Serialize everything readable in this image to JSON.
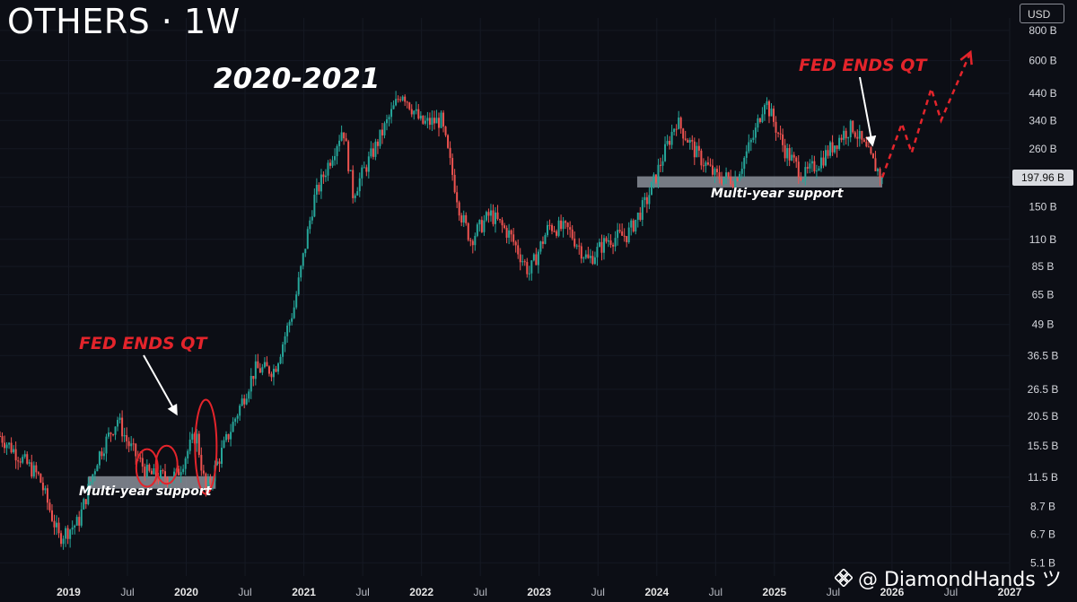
{
  "header": {
    "title": "OTHERS · 1W"
  },
  "annotations": {
    "period": "2020-2021",
    "fed_left": "FED ENDS QT",
    "fed_right": "FED ENDS QT",
    "support_left": "Multi-year support",
    "support_right": "Multi-year support"
  },
  "axis": {
    "currency": "USD",
    "last_price_label": "197.96 B"
  },
  "watermark": {
    "text": "@ DiamondHands ツ",
    "icon": "binance-logo-icon"
  },
  "colors": {
    "up": "#26a69a",
    "down": "#ef5350",
    "annotation_red": "#e3242b",
    "support_band": "#9aa0aa",
    "background": "#0c0e15"
  },
  "chart_data": {
    "type": "candlestick",
    "title": "OTHERS · 1W",
    "y_scale": "log",
    "y_unit": "USD (billions)",
    "ylim": [
      4.5,
      900
    ],
    "y_ticks": [
      {
        "label": "800 B",
        "value": 800
      },
      {
        "label": "600 B",
        "value": 600
      },
      {
        "label": "440 B",
        "value": 440
      },
      {
        "label": "340 B",
        "value": 340
      },
      {
        "label": "260 B",
        "value": 260
      },
      {
        "label": "197.96 B",
        "value": 197.96
      },
      {
        "label": "150 B",
        "value": 150
      },
      {
        "label": "110 B",
        "value": 110
      },
      {
        "label": "85 B",
        "value": 85
      },
      {
        "label": "65 B",
        "value": 65
      },
      {
        "label": "49 B",
        "value": 49
      },
      {
        "label": "36.5 B",
        "value": 36.5
      },
      {
        "label": "26.5 B",
        "value": 26.5
      },
      {
        "label": "20.5 B",
        "value": 20.5
      },
      {
        "label": "15.5 B",
        "value": 15.5
      },
      {
        "label": "11.5 B",
        "value": 11.5
      },
      {
        "label": "8.7 B",
        "value": 8.7
      },
      {
        "label": "6.7 B",
        "value": 6.7
      },
      {
        "label": "5.1 B",
        "value": 5.1
      }
    ],
    "x_ticks": [
      {
        "label": "2019",
        "date": "2019-01",
        "bold": true
      },
      {
        "label": "Jul",
        "date": "2019-07"
      },
      {
        "label": "2020",
        "date": "2020-01",
        "bold": true
      },
      {
        "label": "Jul",
        "date": "2020-07"
      },
      {
        "label": "2021",
        "date": "2021-01",
        "bold": true
      },
      {
        "label": "Jul",
        "date": "2021-07"
      },
      {
        "label": "2022",
        "date": "2022-01",
        "bold": true
      },
      {
        "label": "Jul",
        "date": "2022-07"
      },
      {
        "label": "2023",
        "date": "2023-01",
        "bold": true
      },
      {
        "label": "Jul",
        "date": "2023-07"
      },
      {
        "label": "2024",
        "date": "2024-01",
        "bold": true
      },
      {
        "label": "Jul",
        "date": "2024-07"
      },
      {
        "label": "2025",
        "date": "2025-01",
        "bold": true
      },
      {
        "label": "Jul",
        "date": "2025-07"
      },
      {
        "label": "2026",
        "date": "2026-01",
        "bold": true
      },
      {
        "label": "Jul",
        "date": "2026-07"
      },
      {
        "label": "2027",
        "date": "2027-01",
        "bold": true
      }
    ],
    "x_range": [
      "2018-06",
      "2027-01"
    ],
    "last_price": 197.96,
    "price_path": [
      {
        "date": "2018-06",
        "value": 17
      },
      {
        "date": "2018-08",
        "value": 14
      },
      {
        "date": "2018-10",
        "value": 11.5
      },
      {
        "date": "2018-12",
        "value": 6.5
      },
      {
        "date": "2019-02",
        "value": 7.5
      },
      {
        "date": "2019-04",
        "value": 14
      },
      {
        "date": "2019-06",
        "value": 20
      },
      {
        "date": "2019-07",
        "value": 16
      },
      {
        "date": "2019-09",
        "value": 12
      },
      {
        "date": "2019-10",
        "value": 11.5
      },
      {
        "date": "2019-12",
        "value": 11.7
      },
      {
        "date": "2020-02",
        "value": 17.5
      },
      {
        "date": "2020-03",
        "value": 10
      },
      {
        "date": "2020-05",
        "value": 16
      },
      {
        "date": "2020-08",
        "value": 32
      },
      {
        "date": "2020-10",
        "value": 32
      },
      {
        "date": "2020-12",
        "value": 58
      },
      {
        "date": "2021-02",
        "value": 160
      },
      {
        "date": "2021-05",
        "value": 320
      },
      {
        "date": "2021-06",
        "value": 170
      },
      {
        "date": "2021-08",
        "value": 250
      },
      {
        "date": "2021-11",
        "value": 450
      },
      {
        "date": "2022-01",
        "value": 330
      },
      {
        "date": "2022-03",
        "value": 340
      },
      {
        "date": "2022-05",
        "value": 140
      },
      {
        "date": "2022-06",
        "value": 110
      },
      {
        "date": "2022-08",
        "value": 140
      },
      {
        "date": "2022-10",
        "value": 115
      },
      {
        "date": "2022-12",
        "value": 80
      },
      {
        "date": "2023-02",
        "value": 125
      },
      {
        "date": "2023-04",
        "value": 120
      },
      {
        "date": "2023-06",
        "value": 90
      },
      {
        "date": "2023-08",
        "value": 110
      },
      {
        "date": "2023-10",
        "value": 115
      },
      {
        "date": "2023-12",
        "value": 160
      },
      {
        "date": "2024-03",
        "value": 340
      },
      {
        "date": "2024-05",
        "value": 250
      },
      {
        "date": "2024-07",
        "value": 200
      },
      {
        "date": "2024-09",
        "value": 195
      },
      {
        "date": "2024-11",
        "value": 300
      },
      {
        "date": "2024-12",
        "value": 420
      },
      {
        "date": "2025-02",
        "value": 260
      },
      {
        "date": "2025-04",
        "value": 200
      },
      {
        "date": "2025-06",
        "value": 240
      },
      {
        "date": "2025-08",
        "value": 300
      },
      {
        "date": "2025-09",
        "value": 320
      },
      {
        "date": "2025-11",
        "value": 230
      },
      {
        "date": "2025-12",
        "value": 197.96
      }
    ],
    "support_zones": [
      {
        "from": "2019-03",
        "to": "2020-04",
        "low": 10.3,
        "high": 11.6
      },
      {
        "from": "2023-11",
        "to": "2025-12",
        "low": 180,
        "high": 200
      }
    ],
    "highlight_ellipses": [
      {
        "date": "2019-09",
        "low": 10.5,
        "high": 15
      },
      {
        "date": "2019-11",
        "low": 10.8,
        "high": 15.5
      },
      {
        "date": "2020-03",
        "low": 9.8,
        "high": 24
      }
    ],
    "projection": [
      {
        "date": "2025-12",
        "value": 197.96
      },
      {
        "date": "2026-02",
        "value": 330
      },
      {
        "date": "2026-03",
        "value": 250
      },
      {
        "date": "2026-05",
        "value": 460
      },
      {
        "date": "2026-06",
        "value": 340
      },
      {
        "date": "2026-09",
        "value": 650
      }
    ]
  }
}
